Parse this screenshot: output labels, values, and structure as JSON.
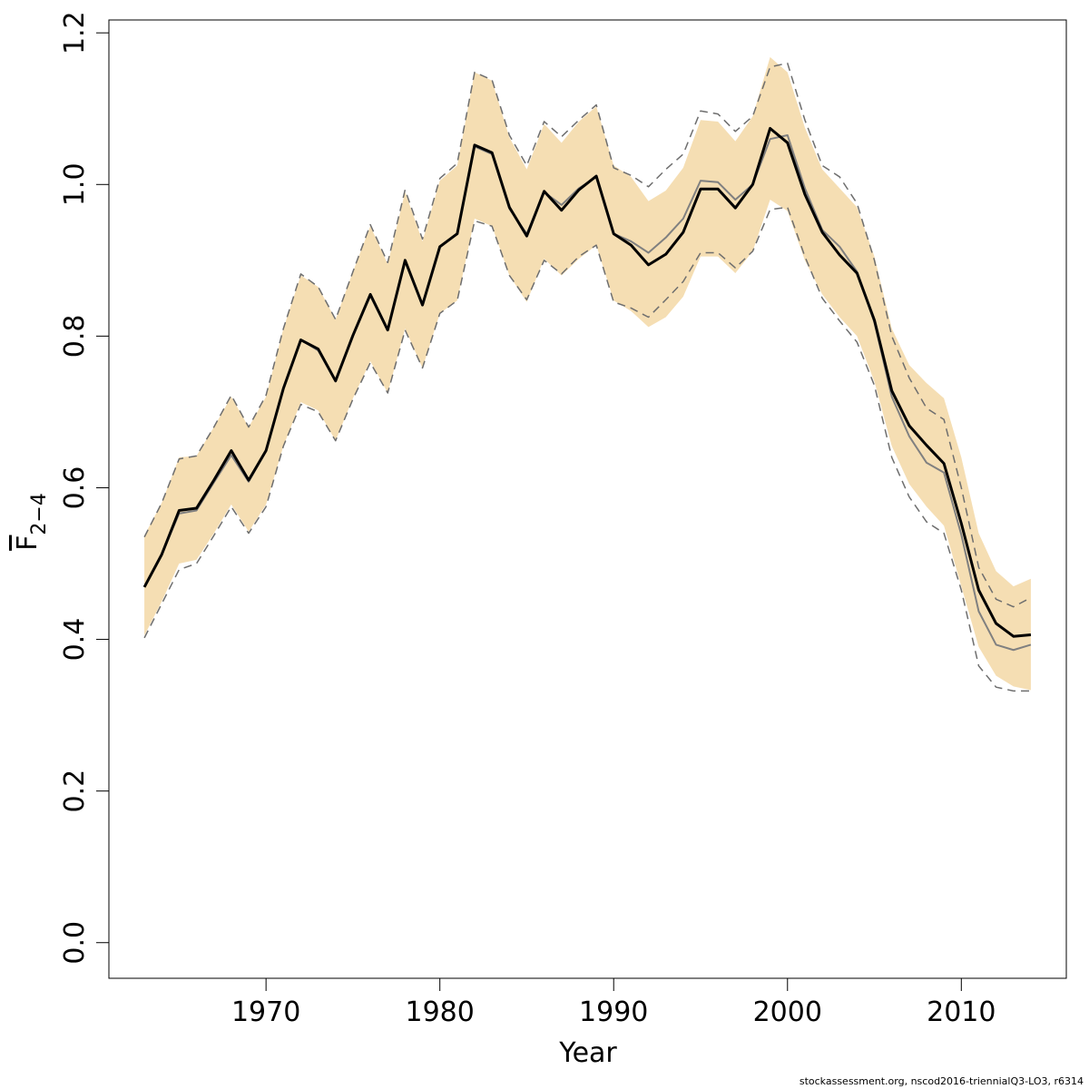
{
  "chart_data": {
    "type": "line",
    "xlabel": "Year",
    "ylabel": "F",
    "ylabel_subscript": "2−4",
    "footnote": "stockassessment.org, nscod2016-triennialQ3-LO3, r6314",
    "x": [
      1963,
      1964,
      1965,
      1966,
      1967,
      1968,
      1969,
      1970,
      1971,
      1972,
      1973,
      1974,
      1975,
      1976,
      1977,
      1978,
      1979,
      1980,
      1981,
      1982,
      1983,
      1984,
      1985,
      1986,
      1987,
      1988,
      1989,
      1990,
      1991,
      1992,
      1993,
      1994,
      1995,
      1996,
      1997,
      1998,
      1999,
      2000,
      2001,
      2002,
      2003,
      2004,
      2005,
      2006,
      2007,
      2008,
      2009,
      2010,
      2011,
      2012,
      2013,
      2014
    ],
    "band": {
      "color": "#f5deb3",
      "upper": [
        0.537,
        0.58,
        0.64,
        0.642,
        0.68,
        0.72,
        0.68,
        0.72,
        0.81,
        0.88,
        0.865,
        0.822,
        0.885,
        0.945,
        0.895,
        0.99,
        0.925,
        1.005,
        1.025,
        1.148,
        1.137,
        1.062,
        1.02,
        1.08,
        1.055,
        1.083,
        1.103,
        1.025,
        1.01,
        0.978,
        0.992,
        1.022,
        1.085,
        1.083,
        1.057,
        1.09,
        1.168,
        1.148,
        1.075,
        1.02,
        0.995,
        0.97,
        0.905,
        0.81,
        0.762,
        0.738,
        0.718,
        0.64,
        0.54,
        0.49,
        0.47,
        0.48
      ],
      "lower": [
        0.405,
        0.45,
        0.5,
        0.505,
        0.54,
        0.578,
        0.542,
        0.578,
        0.655,
        0.713,
        0.702,
        0.662,
        0.718,
        0.767,
        0.725,
        0.81,
        0.758,
        0.83,
        0.847,
        0.955,
        0.945,
        0.88,
        0.845,
        0.902,
        0.88,
        0.902,
        0.92,
        0.847,
        0.833,
        0.812,
        0.825,
        0.852,
        0.905,
        0.905,
        0.883,
        0.912,
        0.98,
        0.965,
        0.9,
        0.855,
        0.825,
        0.8,
        0.74,
        0.655,
        0.605,
        0.575,
        0.55,
        0.47,
        0.39,
        0.352,
        0.338,
        0.333
      ]
    },
    "series": [
      {
        "color": "#6e6e6e",
        "dash": true,
        "width": 1.5,
        "values": [
          0.535,
          0.58,
          0.638,
          0.642,
          0.68,
          0.722,
          0.68,
          0.722,
          0.81,
          0.882,
          0.865,
          0.822,
          0.885,
          0.947,
          0.897,
          0.993,
          0.928,
          1.008,
          1.028,
          1.148,
          1.138,
          1.065,
          1.025,
          1.083,
          1.063,
          1.085,
          1.105,
          1.022,
          1.012,
          0.997,
          1.02,
          1.04,
          1.097,
          1.093,
          1.07,
          1.09,
          1.155,
          1.16,
          1.085,
          1.025,
          1.01,
          0.975,
          0.9,
          0.8,
          0.745,
          0.705,
          0.69,
          0.6,
          0.495,
          0.453,
          0.443,
          0.455
        ]
      },
      {
        "color": "#6e6e6e",
        "dash": true,
        "width": 1.5,
        "values": [
          0.402,
          0.447,
          0.492,
          0.5,
          0.537,
          0.575,
          0.54,
          0.575,
          0.655,
          0.71,
          0.7,
          0.662,
          0.717,
          0.765,
          0.725,
          0.808,
          0.758,
          0.83,
          0.847,
          0.952,
          0.945,
          0.88,
          0.848,
          0.9,
          0.882,
          0.905,
          0.92,
          0.845,
          0.837,
          0.825,
          0.848,
          0.872,
          0.91,
          0.91,
          0.89,
          0.912,
          0.967,
          0.97,
          0.905,
          0.85,
          0.82,
          0.792,
          0.735,
          0.64,
          0.588,
          0.555,
          0.54,
          0.465,
          0.365,
          0.337,
          0.332,
          0.332
        ]
      },
      {
        "color": "#808080",
        "dash": false,
        "width": 2,
        "values": [
          0.469,
          0.512,
          0.566,
          0.57,
          0.607,
          0.643,
          0.608,
          0.648,
          0.731,
          0.795,
          0.781,
          0.74,
          0.8,
          0.853,
          0.808,
          0.898,
          0.841,
          0.917,
          0.935,
          1.05,
          1.04,
          0.968,
          0.935,
          0.99,
          0.973,
          0.995,
          1.01,
          0.935,
          0.925,
          0.91,
          0.93,
          0.955,
          1.005,
          1.003,
          0.98,
          1.0,
          1.06,
          1.065,
          0.995,
          0.94,
          0.918,
          0.885,
          0.818,
          0.72,
          0.668,
          0.633,
          0.62,
          0.538,
          0.437,
          0.393,
          0.386,
          0.393
        ]
      },
      {
        "color": "#000000",
        "dash": false,
        "width": 3,
        "values": [
          0.469,
          0.512,
          0.57,
          0.573,
          0.61,
          0.649,
          0.61,
          0.649,
          0.731,
          0.795,
          0.783,
          0.741,
          0.801,
          0.855,
          0.808,
          0.9,
          0.841,
          0.918,
          0.935,
          1.052,
          1.042,
          0.97,
          0.932,
          0.991,
          0.966,
          0.993,
          1.011,
          0.935,
          0.92,
          0.894,
          0.908,
          0.937,
          0.994,
          0.994,
          0.969,
          1.0,
          1.074,
          1.055,
          0.987,
          0.937,
          0.907,
          0.883,
          0.821,
          0.728,
          0.682,
          0.656,
          0.632,
          0.553,
          0.465,
          0.421,
          0.404,
          0.406
        ]
      }
    ],
    "xlim": [
      1960.96,
      2016.04
    ],
    "ylim": [
      -0.047,
      1.217
    ],
    "xticks": [
      1970,
      1980,
      1990,
      2000,
      2010
    ],
    "yticks": [
      {
        "value": 0,
        "label": "0.0"
      },
      0.2,
      0.4,
      0.6,
      0.8,
      {
        "value": 1,
        "label": "1.0"
      },
      1.2
    ]
  }
}
